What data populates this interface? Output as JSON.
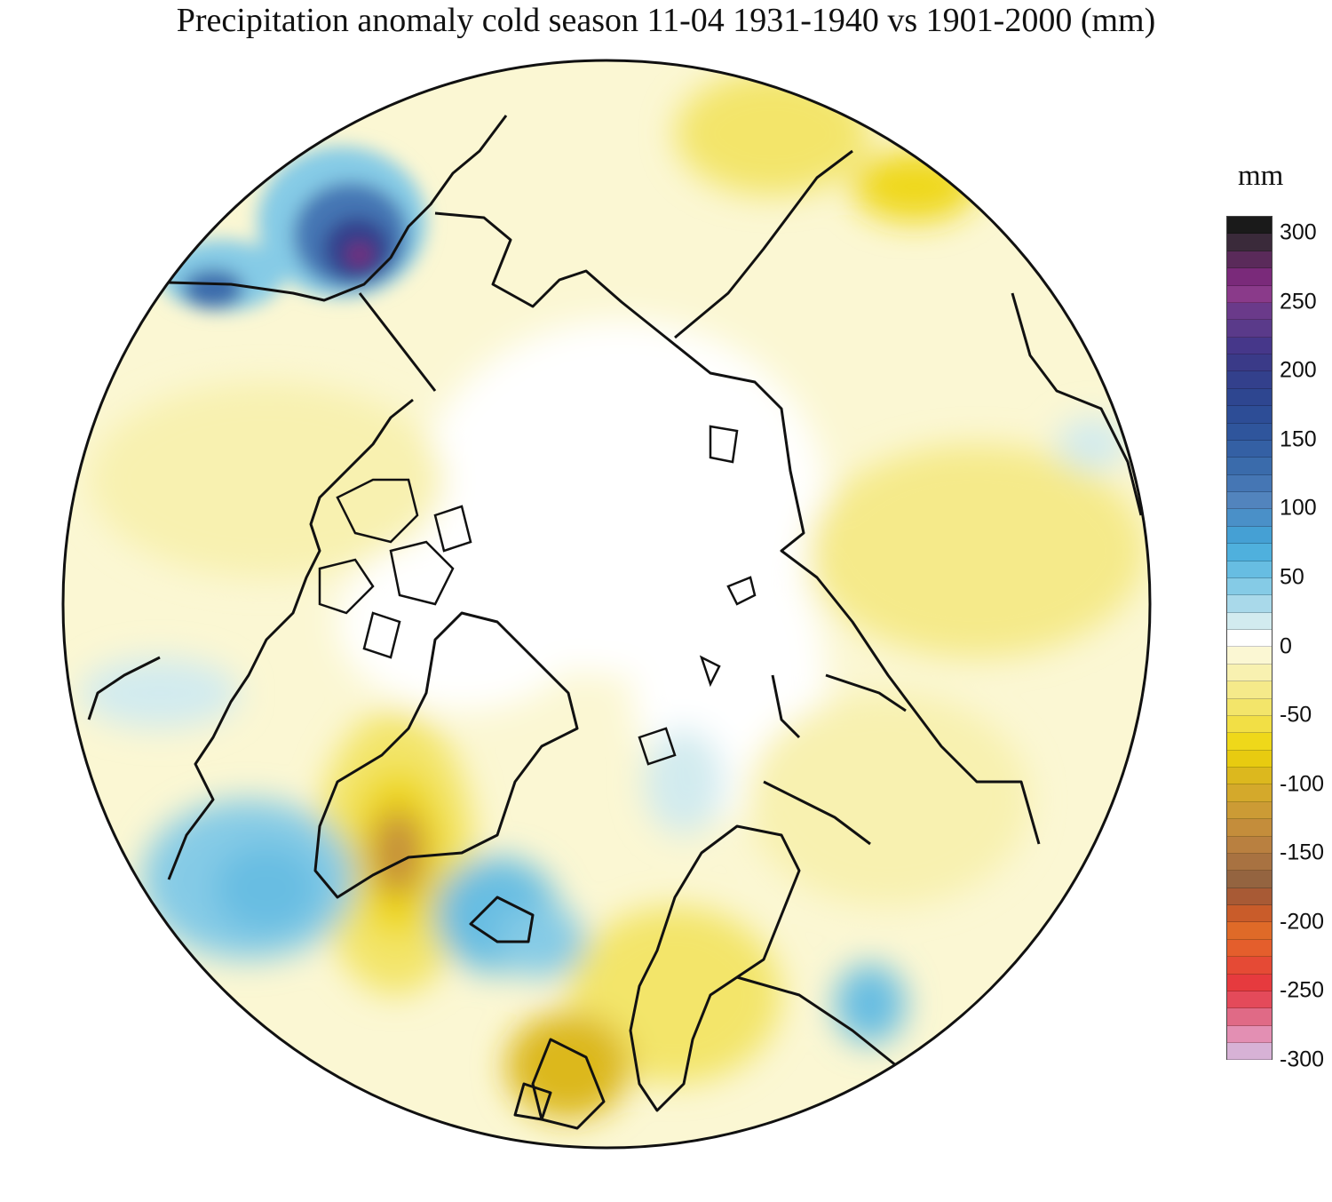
{
  "title": "Precipitation anomaly cold season 11-04 1931-1940 vs 1901-2000 (mm)",
  "legend": {
    "unit": "mm",
    "ticks": [
      "300",
      "250",
      "200",
      "150",
      "100",
      "50",
      "0",
      "-50",
      "-100",
      "-150",
      "-200",
      "-250",
      "-300"
    ],
    "colors": [
      "#1a1a1a",
      "#3a2a3a",
      "#5a2a5a",
      "#7a2a7a",
      "#8a3a8a",
      "#6a3a8a",
      "#5a3a8a",
      "#46378a",
      "#3a3a88",
      "#33408c",
      "#2e4690",
      "#2d4d96",
      "#2f559c",
      "#3460a4",
      "#3a6bab",
      "#4576b4",
      "#5284bd",
      "#4a90c8",
      "#45a0d4",
      "#4fb0dd",
      "#67bde2",
      "#85cbe6",
      "#a9d9ea",
      "#d2ebef",
      "#ffffff",
      "#fbf7d3",
      "#f8f1b0",
      "#f5ea8a",
      "#f3e56a",
      "#f2df45",
      "#efd81a",
      "#e8cb10",
      "#dcb81e",
      "#d4a92b",
      "#cc9b35",
      "#c48d3b",
      "#b98040",
      "#a87241",
      "#946440",
      "#a85a35",
      "#c95c2a",
      "#df6a28",
      "#e45e2c",
      "#e54a35",
      "#e63a3e",
      "#e44a5a",
      "#e06a86",
      "#e38fb3",
      "#d7b2d6"
    ]
  },
  "colors": {
    "coast": "#111111",
    "zero": "#ffffff",
    "neg_light": "#fbf7d3",
    "neg_mid": "#f3e56a",
    "neg_strong": "#efd81a",
    "neg_brown": "#c48d3b",
    "pos_light": "#d2ebef",
    "pos_mid": "#67bde2",
    "pos_blue": "#3a6bab",
    "pos_dark": "#2e4690",
    "pos_purple": "#7a2a7a"
  }
}
